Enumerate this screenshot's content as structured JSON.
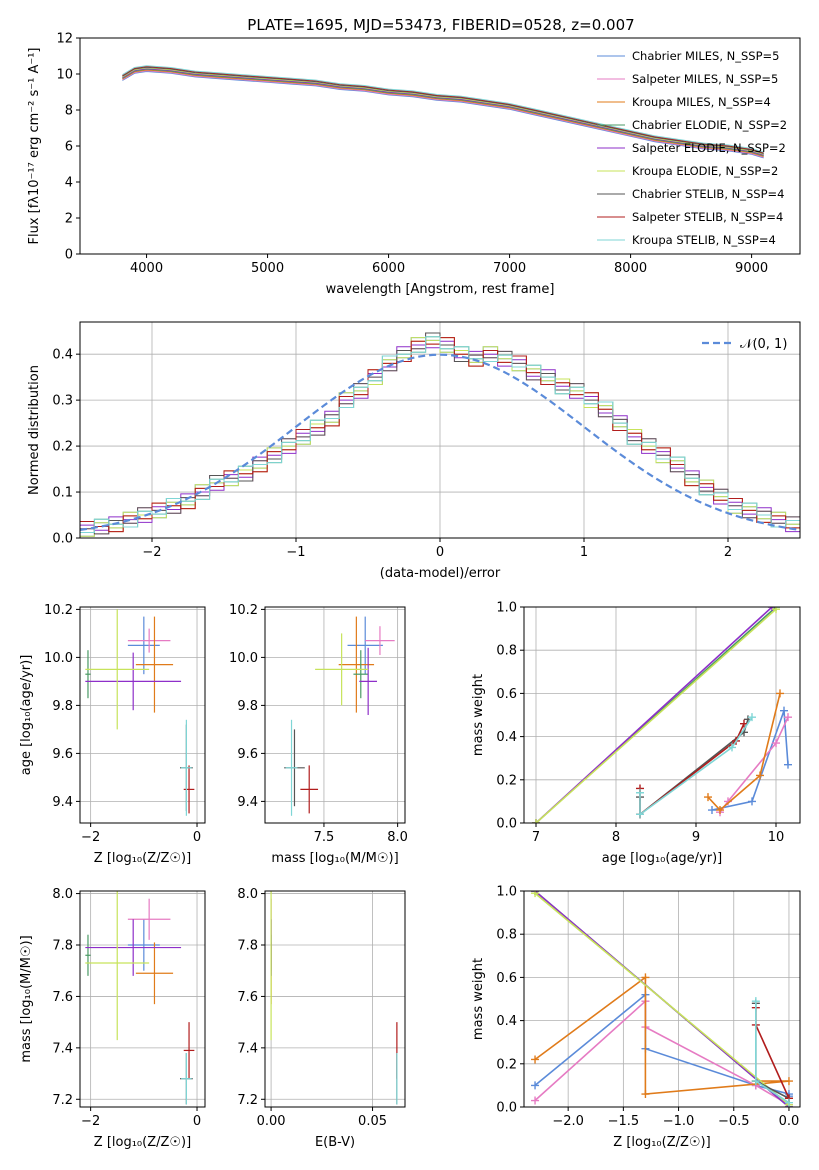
{
  "figure": {
    "title": "PLATE=1695, MJD=53473, FIBERID=0528, z=0.007"
  },
  "model_colors": [
    "#5b8bd9",
    "#e67bc3",
    "#e07b1a",
    "#4a9a64",
    "#8e2fc9",
    "#c7e35a",
    "#555555",
    "#b11d1d",
    "#7fd6d6"
  ],
  "chart_data": [
    {
      "id": "spectrum",
      "type": "line",
      "xlabel": "wavelength [Angstrom, rest frame]",
      "ylabel": "Flux [fλ10⁻¹⁷ erg cm⁻² s⁻¹ A⁻¹]",
      "xlim": [
        3450,
        9400
      ],
      "ylim": [
        0,
        12
      ],
      "xticks": [
        4000,
        5000,
        6000,
        7000,
        8000,
        9000
      ],
      "yticks": [
        0,
        2,
        4,
        6,
        8,
        10,
        12
      ],
      "grid": false,
      "legend_position": "top-right",
      "data_color": "#888888",
      "x": [
        3800,
        3900,
        4000,
        4200,
        4400,
        4600,
        4800,
        5000,
        5200,
        5400,
        5600,
        5800,
        6000,
        6200,
        6400,
        6600,
        6800,
        7000,
        7200,
        7400,
        7600,
        7800,
        8000,
        8200,
        8400,
        8600,
        8800,
        9000,
        9100
      ],
      "y": [
        9.8,
        10.2,
        10.3,
        10.2,
        10.0,
        9.9,
        9.8,
        9.7,
        9.6,
        9.5,
        9.3,
        9.2,
        9.0,
        8.9,
        8.7,
        8.6,
        8.4,
        8.2,
        7.9,
        7.6,
        7.3,
        7.0,
        6.7,
        6.4,
        6.2,
        6.0,
        5.9,
        5.7,
        5.5
      ],
      "series": [
        {
          "name": "Chabrier MILES, N_SSP=5"
        },
        {
          "name": "Salpeter MILES, N_SSP=5"
        },
        {
          "name": "Kroupa MILES, N_SSP=4"
        },
        {
          "name": "Chabrier ELODIE, N_SSP=2"
        },
        {
          "name": "Salpeter ELODIE, N_SSP=2"
        },
        {
          "name": "Kroupa ELODIE, N_SSP=2"
        },
        {
          "name": "Chabrier STELIB, N_SSP=4"
        },
        {
          "name": "Salpeter STELIB, N_SSP=4"
        },
        {
          "name": "Kroupa STELIB, N_SSP=4"
        }
      ]
    },
    {
      "id": "residuals",
      "type": "histogram",
      "xlabel": "(data-model)/error",
      "ylabel": "Normed distribution",
      "xlim": [
        -2.5,
        2.5
      ],
      "ylim": [
        0,
        0.47
      ],
      "xticks": [
        -2,
        -1,
        0,
        1,
        2
      ],
      "yticks": [
        0,
        0.1,
        0.2,
        0.3,
        0.4
      ],
      "grid": true,
      "legend_position": "top-right",
      "legend": [
        {
          "name": "𝒩(0, 1)",
          "color": "#5b8bd9",
          "dashed": true
        }
      ],
      "bin_edges_start": -2.5,
      "bin_width": 0.1,
      "hist_values": [
        0.02,
        0.025,
        0.03,
        0.04,
        0.05,
        0.06,
        0.07,
        0.08,
        0.1,
        0.12,
        0.13,
        0.14,
        0.16,
        0.18,
        0.2,
        0.22,
        0.24,
        0.26,
        0.3,
        0.32,
        0.35,
        0.38,
        0.4,
        0.42,
        0.43,
        0.42,
        0.4,
        0.39,
        0.4,
        0.39,
        0.38,
        0.36,
        0.35,
        0.33,
        0.32,
        0.3,
        0.28,
        0.25,
        0.22,
        0.2,
        0.18,
        0.16,
        0.13,
        0.11,
        0.09,
        0.07,
        0.06,
        0.05,
        0.04,
        0.03
      ]
    },
    {
      "id": "age-vs-Z",
      "type": "scatter",
      "xlabel": "Z [log₁₀(Z/Z☉)]",
      "ylabel": "age  [log₁₀(age/yr)]",
      "xlim": [
        -2.2,
        0.15
      ],
      "ylim": [
        9.31,
        10.21
      ],
      "xticks": [
        -2,
        0
      ],
      "yticks": [
        9.4,
        9.6,
        9.8,
        10.0,
        10.2
      ],
      "grid": true,
      "points": [
        {
          "x": -1.0,
          "xerr": 0.3,
          "y": 10.05,
          "yerr": 0.12
        },
        {
          "x": -0.9,
          "xerr": 0.4,
          "y": 10.07,
          "yerr": 0.05
        },
        {
          "x": -0.8,
          "xerr": 0.35,
          "y": 9.97,
          "yerr": 0.2
        },
        {
          "x": -2.05,
          "xerr": 0.05,
          "y": 9.93,
          "yerr": 0.1
        },
        {
          "x": -1.2,
          "xerr": 0.9,
          "y": 9.9,
          "yerr": 0.12
        },
        {
          "x": -1.5,
          "xerr": 0.6,
          "y": 9.95,
          "yerr": 0.25
        },
        {
          "x": -0.2,
          "xerr": 0.12,
          "y": 9.54,
          "yerr": 0.18
        },
        {
          "x": -0.15,
          "xerr": 0.1,
          "y": 9.45,
          "yerr": 0.1
        },
        {
          "x": -0.2,
          "xerr": 0.1,
          "y": 9.54,
          "yerr": 0.2
        }
      ]
    },
    {
      "id": "age-vs-mass",
      "type": "scatter",
      "xlabel": "mass [log₁₀(M/M☉)]",
      "ylabel": "",
      "xlim": [
        7.1,
        8.05
      ],
      "ylim": [
        9.31,
        10.21
      ],
      "xticks": [
        7.5,
        8.0
      ],
      "yticks": [
        9.4,
        9.6,
        9.8,
        10.0,
        10.2
      ],
      "grid": true,
      "points": [
        {
          "x": 7.78,
          "xerr": 0.12,
          "y": 10.05,
          "yerr": 0.12
        },
        {
          "x": 7.88,
          "xerr": 0.1,
          "y": 10.07,
          "yerr": 0.06
        },
        {
          "x": 7.72,
          "xerr": 0.12,
          "y": 9.97,
          "yerr": 0.2
        },
        {
          "x": 7.75,
          "xerr": 0.05,
          "y": 9.93,
          "yerr": 0.1
        },
        {
          "x": 7.8,
          "xerr": 0.06,
          "y": 9.9,
          "yerr": 0.14
        },
        {
          "x": 7.62,
          "xerr": 0.18,
          "y": 9.95,
          "yerr": 0.15
        },
        {
          "x": 7.3,
          "xerr": 0.07,
          "y": 9.54,
          "yerr": 0.16
        },
        {
          "x": 7.4,
          "xerr": 0.06,
          "y": 9.45,
          "yerr": 0.1
        },
        {
          "x": 7.28,
          "xerr": 0.04,
          "y": 9.54,
          "yerr": 0.2
        }
      ]
    },
    {
      "id": "weight-vs-age",
      "type": "line",
      "xlabel": "age  [log₁₀(age/yr)]",
      "ylabel": "mass weight",
      "xlim": [
        6.85,
        10.3
      ],
      "ylim": [
        0,
        1
      ],
      "xticks": [
        7,
        8,
        9,
        10
      ],
      "yticks": [
        0,
        0.2,
        0.4,
        0.6,
        0.8,
        1.0
      ],
      "grid": true,
      "series": [
        {
          "x": [
            9.2,
            9.7,
            10.1,
            10.15
          ],
          "y": [
            0.06,
            0.1,
            0.52,
            0.27
          ]
        },
        {
          "x": [
            9.3,
            9.4,
            10.0,
            10.15
          ],
          "y": [
            0.05,
            0.1,
            0.37,
            0.49
          ]
        },
        {
          "x": [
            9.15,
            9.3,
            9.8,
            10.05
          ],
          "y": [
            0.12,
            0.06,
            0.22,
            0.6
          ]
        },
        {
          "x": [
            7.0,
            10.0
          ],
          "y": [
            0.0,
            1.0
          ]
        },
        {
          "x": [
            7.0,
            9.95
          ],
          "y": [
            0.0,
            1.0
          ]
        },
        {
          "x": [
            7.0,
            10.0
          ],
          "y": [
            0.0,
            0.99
          ]
        },
        {
          "x": [
            8.3,
            8.3,
            9.6,
            9.65
          ],
          "y": [
            0.12,
            0.04,
            0.42,
            0.48
          ]
        },
        {
          "x": [
            8.3,
            8.3,
            9.5,
            9.6
          ],
          "y": [
            0.16,
            0.04,
            0.38,
            0.46
          ]
        },
        {
          "x": [
            8.3,
            8.3,
            9.45,
            9.7
          ],
          "y": [
            0.14,
            0.04,
            0.35,
            0.49
          ]
        }
      ]
    },
    {
      "id": "mass-vs-Z",
      "type": "scatter",
      "xlabel": "Z [log₁₀(Z/Z☉)]",
      "ylabel": "mass [log₁₀(M/M☉)]",
      "xlim": [
        -2.2,
        0.15
      ],
      "ylim": [
        7.17,
        8.01
      ],
      "xticks": [
        -2,
        0
      ],
      "yticks": [
        7.2,
        7.4,
        7.6,
        7.8,
        8.0
      ],
      "grid": true,
      "points": [
        {
          "x": -1.0,
          "xerr": 0.3,
          "y": 7.8,
          "yerr": 0.1
        },
        {
          "x": -0.9,
          "xerr": 0.4,
          "y": 7.9,
          "yerr": 0.08
        },
        {
          "x": -0.8,
          "xerr": 0.35,
          "y": 7.69,
          "yerr": 0.12
        },
        {
          "x": -2.05,
          "xerr": 0.05,
          "y": 7.76,
          "yerr": 0.08
        },
        {
          "x": -1.2,
          "xerr": 0.9,
          "y": 7.79,
          "yerr": 0.11
        },
        {
          "x": -1.5,
          "xerr": 0.6,
          "y": 7.73,
          "yerr": 0.3
        },
        {
          "x": -0.2,
          "xerr": 0.12,
          "y": 7.28,
          "yerr": 0.1
        },
        {
          "x": -0.15,
          "xerr": 0.1,
          "y": 7.39,
          "yerr": 0.11
        },
        {
          "x": -0.2,
          "xerr": 0.1,
          "y": 7.28,
          "yerr": 0.1
        }
      ]
    },
    {
      "id": "mass-vs-ebv",
      "type": "scatter",
      "xlabel": "E(B-V)",
      "ylabel": "",
      "xlim": [
        -0.003,
        0.066
      ],
      "ylim": [
        7.17,
        8.01
      ],
      "xticks": [
        0.0,
        0.05
      ],
      "yticks": [
        7.2,
        7.4,
        7.6,
        7.8,
        8.0
      ],
      "grid": true,
      "points": [
        {
          "x": 0.0,
          "xerr": 0,
          "y": 7.8,
          "yerr": 0.1
        },
        {
          "x": 0.0,
          "xerr": 0,
          "y": 7.9,
          "yerr": 0.08
        },
        {
          "x": 0.0,
          "xerr": 0,
          "y": 7.69,
          "yerr": 0.12
        },
        {
          "x": 0.0,
          "xerr": 0,
          "y": 7.76,
          "yerr": 0.08
        },
        {
          "x": 0.0,
          "xerr": 0,
          "y": 7.79,
          "yerr": 0.11
        },
        {
          "x": 0.0,
          "xerr": 0,
          "y": 7.73,
          "yerr": 0.3
        },
        {
          "x": 0.062,
          "xerr": 0,
          "y": 7.28,
          "yerr": 0.1
        },
        {
          "x": 0.062,
          "xerr": 0,
          "y": 7.39,
          "yerr": 0.11
        },
        {
          "x": 0.062,
          "xerr": 0,
          "y": 7.28,
          "yerr": 0.1
        }
      ]
    },
    {
      "id": "weight-vs-Z",
      "type": "line",
      "xlabel": "Z [log₁₀(Z/Z☉)]",
      "ylabel": "mass weight",
      "xlim": [
        -2.4,
        0.1
      ],
      "ylim": [
        0,
        1
      ],
      "xticks": [
        -2.0,
        -1.5,
        -1.0,
        -0.5,
        0.0
      ],
      "yticks": [
        0,
        0.2,
        0.4,
        0.6,
        0.8,
        1.0
      ],
      "grid": true,
      "series": [
        {
          "x": [
            -2.3,
            -1.3,
            -1.3,
            -0.3,
            0.0,
            0.0
          ],
          "y": [
            0.1,
            0.52,
            0.27,
            0.1,
            0.06,
            0.05
          ]
        },
        {
          "x": [
            -2.3,
            -1.3,
            -1.3,
            -0.3,
            0.0
          ],
          "y": [
            0.03,
            0.49,
            0.37,
            0.1,
            0.01
          ]
        },
        {
          "x": [
            -2.3,
            -1.3,
            -1.3,
            0.0,
            -0.3
          ],
          "y": [
            0.22,
            0.6,
            0.06,
            0.12,
            0.12
          ]
        },
        {
          "x": [
            -2.3,
            0.0
          ],
          "y": [
            1.0,
            0.0
          ]
        },
        {
          "x": [
            -2.3,
            0.0
          ],
          "y": [
            1.0,
            0.0
          ]
        },
        {
          "x": [
            -2.3,
            0.0
          ],
          "y": [
            0.99,
            0.01
          ]
        },
        {
          "x": [
            -0.3,
            -0.3,
            0.0
          ],
          "y": [
            0.48,
            0.12,
            0.04
          ]
        },
        {
          "x": [
            -0.3,
            -0.3,
            0.0
          ],
          "y": [
            0.46,
            0.38,
            0.04
          ]
        },
        {
          "x": [
            -0.3,
            -0.3,
            0.0
          ],
          "y": [
            0.49,
            0.12,
            0.02
          ]
        }
      ]
    }
  ]
}
